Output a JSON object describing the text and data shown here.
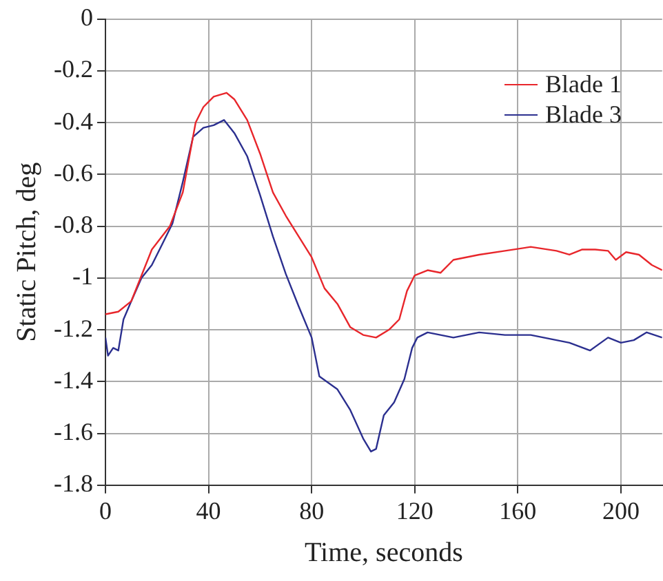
{
  "chart_data": {
    "type": "line",
    "xlabel": "Time, seconds",
    "ylabel": "Static Pitch, deg",
    "xlim": [
      0,
      216
    ],
    "xticks": [
      0,
      40,
      80,
      120,
      160,
      200
    ],
    "ylim": [
      -1.8,
      0
    ],
    "yticks": [
      -1.8,
      -1.6,
      -1.4,
      -1.2,
      -1,
      -0.8,
      -0.6,
      -0.4,
      -0.2,
      0
    ],
    "grid": true,
    "legend": "top right",
    "marker": "none",
    "line_style": "solid",
    "series": [
      {
        "name": "Blade 1",
        "color": "#e8262b",
        "x": [
          0,
          5,
          10,
          18,
          25,
          30,
          35,
          38,
          42,
          47,
          50,
          55,
          60,
          65,
          70,
          75,
          80,
          85,
          90,
          95,
          100,
          105,
          110,
          114,
          117,
          120,
          125,
          130,
          135,
          145,
          155,
          165,
          175,
          180,
          185,
          190,
          195,
          198,
          202,
          207,
          212,
          216
        ],
        "values": [
          -1.14,
          -1.13,
          -1.09,
          -0.89,
          -0.8,
          -0.67,
          -0.4,
          -0.34,
          -0.3,
          -0.285,
          -0.31,
          -0.39,
          -0.52,
          -0.67,
          -0.76,
          -0.84,
          -0.92,
          -1.04,
          -1.1,
          -1.19,
          -1.22,
          -1.23,
          -1.2,
          -1.16,
          -1.05,
          -0.99,
          -0.97,
          -0.98,
          -0.93,
          -0.91,
          -0.895,
          -0.88,
          -0.895,
          -0.91,
          -0.89,
          -0.89,
          -0.895,
          -0.93,
          -0.9,
          -0.91,
          -0.95,
          -0.97
        ]
      },
      {
        "name": "Blade 3",
        "color": "#2b2f8f",
        "x": [
          0,
          1,
          3,
          5,
          7,
          10,
          14,
          18,
          22,
          26,
          30,
          34,
          38,
          42,
          46,
          50,
          55,
          60,
          65,
          70,
          75,
          80,
          83,
          90,
          95,
          100,
          103,
          105,
          108,
          112,
          116,
          119,
          121,
          125,
          135,
          145,
          155,
          165,
          175,
          180,
          188,
          195,
          200,
          205,
          210,
          216
        ],
        "values": [
          -1.23,
          -1.3,
          -1.27,
          -1.28,
          -1.16,
          -1.09,
          -1,
          -0.95,
          -0.87,
          -0.79,
          -0.63,
          -0.455,
          -0.42,
          -0.41,
          -0.39,
          -0.44,
          -0.53,
          -0.68,
          -0.84,
          -0.985,
          -1.11,
          -1.23,
          -1.38,
          -1.43,
          -1.51,
          -1.62,
          -1.67,
          -1.66,
          -1.53,
          -1.48,
          -1.39,
          -1.27,
          -1.23,
          -1.21,
          -1.23,
          -1.21,
          -1.22,
          -1.22,
          -1.24,
          -1.25,
          -1.28,
          -1.23,
          -1.25,
          -1.24,
          -1.21,
          -1.23
        ]
      }
    ]
  }
}
